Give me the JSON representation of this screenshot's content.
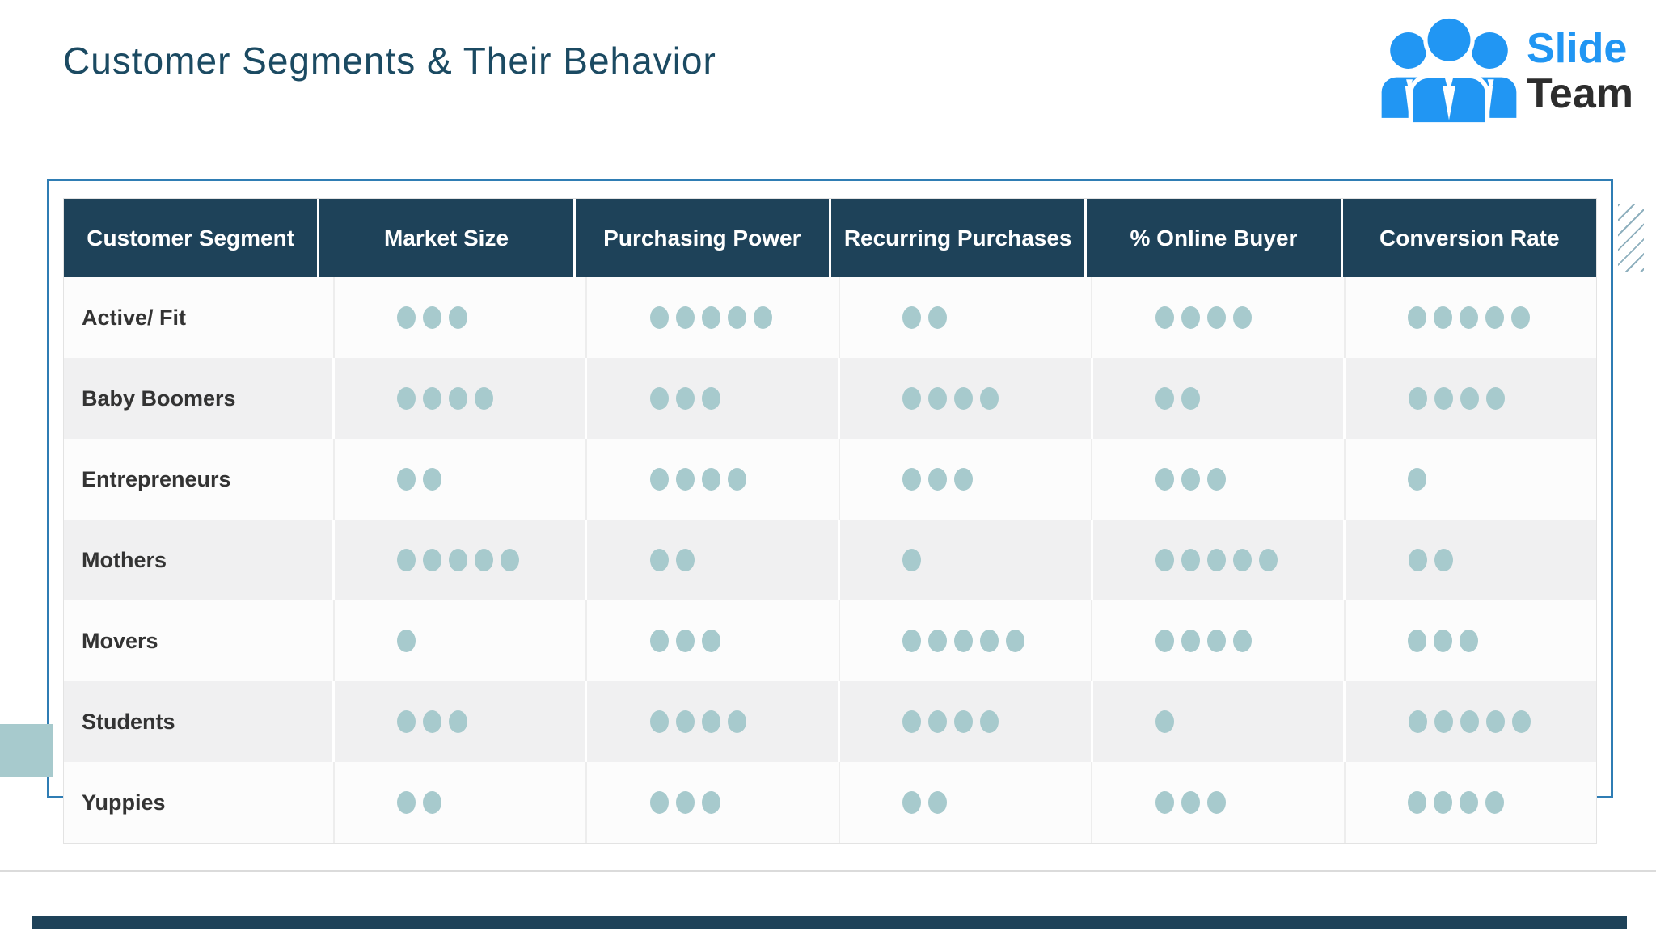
{
  "slide": {
    "title": "Customer Segments & Their Behavior",
    "logo": {
      "line1": "Slide",
      "line2": "Team"
    }
  },
  "table": {
    "columns": [
      "Customer Segment",
      "Market Size",
      "Purchasing Power",
      "Recurring Purchases",
      "% Online Buyer",
      "Conversion Rate"
    ],
    "rating_scale_max": 5,
    "rows": [
      {
        "label": "Active/ Fit",
        "values": [
          3,
          5,
          2,
          4,
          5
        ]
      },
      {
        "label": "Baby Boomers",
        "values": [
          4,
          3,
          4,
          2,
          4
        ]
      },
      {
        "label": "Entrepreneurs",
        "values": [
          2,
          4,
          3,
          3,
          1
        ]
      },
      {
        "label": "Mothers",
        "values": [
          5,
          2,
          1,
          5,
          2
        ]
      },
      {
        "label": "Movers",
        "values": [
          1,
          3,
          5,
          4,
          3
        ]
      },
      {
        "label": "Students",
        "values": [
          3,
          4,
          4,
          1,
          5
        ]
      },
      {
        "label": "Yuppies",
        "values": [
          2,
          3,
          2,
          3,
          4
        ]
      }
    ]
  },
  "chart_data": {
    "type": "table",
    "title": "Customer Segments & Their Behavior",
    "columns": [
      "Customer Segment",
      "Market Size",
      "Purchasing Power",
      "Recurring Purchases",
      "% Online Buyer",
      "Conversion Rate"
    ],
    "rating_scale_max": 5,
    "rows": [
      [
        "Active/ Fit",
        3,
        5,
        2,
        4,
        5
      ],
      [
        "Baby Boomers",
        4,
        3,
        4,
        2,
        4
      ],
      [
        "Entrepreneurs",
        2,
        4,
        3,
        3,
        1
      ],
      [
        "Mothers",
        5,
        2,
        1,
        5,
        2
      ],
      [
        "Movers",
        1,
        3,
        5,
        4,
        3
      ],
      [
        "Students",
        3,
        4,
        4,
        1,
        5
      ],
      [
        "Yuppies",
        2,
        3,
        2,
        3,
        4
      ]
    ]
  },
  "colors": {
    "header_bg": "#1E4259",
    "dot_teal": "#A7CACD",
    "frame_blue": "#2F7DB4",
    "title_navy": "#1B4A62",
    "logo_blue": "#2196F3",
    "row_alt_gray": "#F0F0F1",
    "bottom_bar_navy": "#1E4259"
  }
}
